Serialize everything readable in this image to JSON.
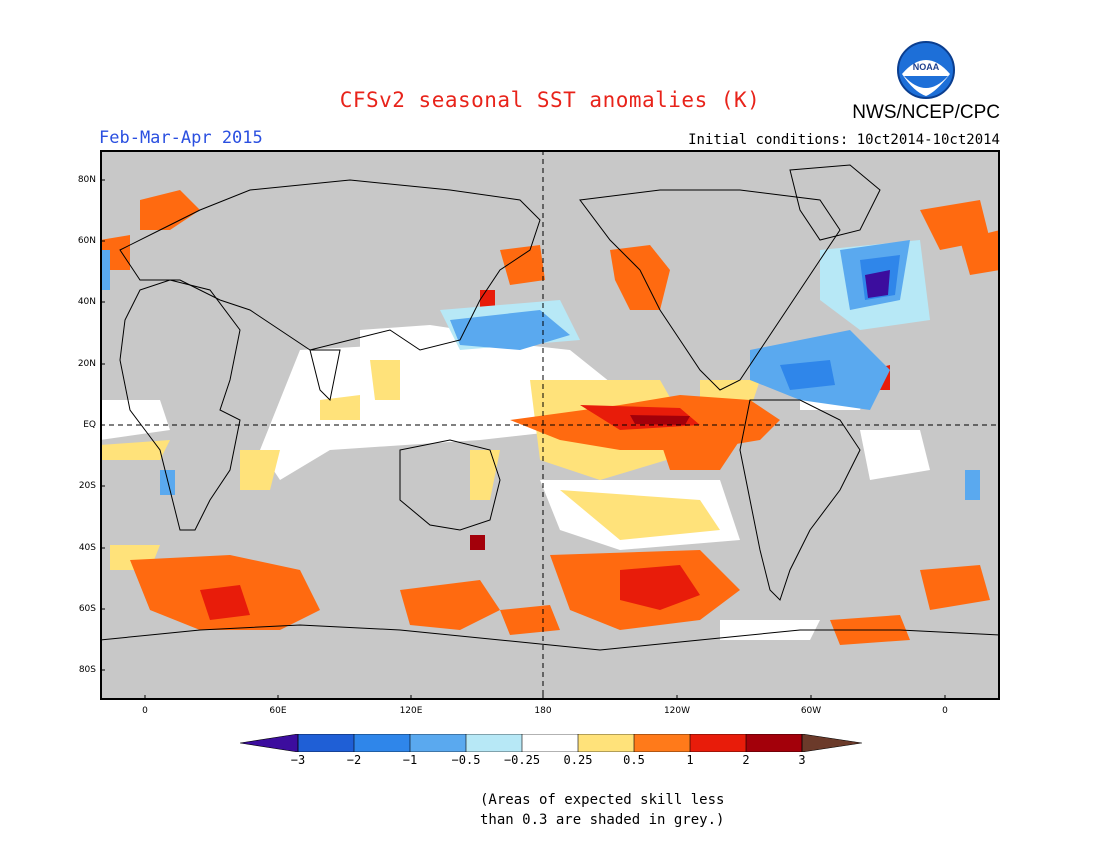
{
  "header": {
    "title": "CFSv2 seasonal SST anomalies (K)",
    "agency": "NWS/NCEP/CPC",
    "season": "Feb-Mar-Apr 2015",
    "initial_conditions": "Initial conditions: 10ct2014-10ct2014",
    "logo_text": "NOAA"
  },
  "map": {
    "lat_labels": [
      "80N",
      "60N",
      "40N",
      "20N",
      "EQ",
      "20S",
      "40S",
      "60S",
      "80S"
    ],
    "lon_labels": [
      "0",
      "60E",
      "120E",
      "180",
      "120W",
      "60W",
      "0"
    ],
    "grey_meaning": "skill < 0.3"
  },
  "colorbar": {
    "labels": [
      "−3",
      "−2",
      "−1",
      "−0.5",
      "−0.25",
      "0.25",
      "0.5",
      "1",
      "2",
      "3"
    ],
    "colors": [
      "#3c0d9e",
      "#1f5fd6",
      "#2f86ea",
      "#5aa9ef",
      "#b7e8f6",
      "#ffffff",
      "#ffe27a",
      "#ff7a1a",
      "#e81c0a",
      "#a3000a",
      "#6b3a2a"
    ]
  },
  "colors": {
    "grey": "#c8c8c8",
    "white": "#ffffff",
    "yellow": "#ffe27a",
    "orange": "#ff6a10",
    "red": "#e81c0a",
    "darkred": "#a3000a",
    "lightblue": "#5aa9ef",
    "blue": "#2f86ea",
    "darkblue": "#1f5fd6",
    "purple": "#3c0d9e"
  },
  "footnote": {
    "line1": "(Areas of expected skill less",
    "line2": "than 0.3 are shaded in grey.)"
  }
}
